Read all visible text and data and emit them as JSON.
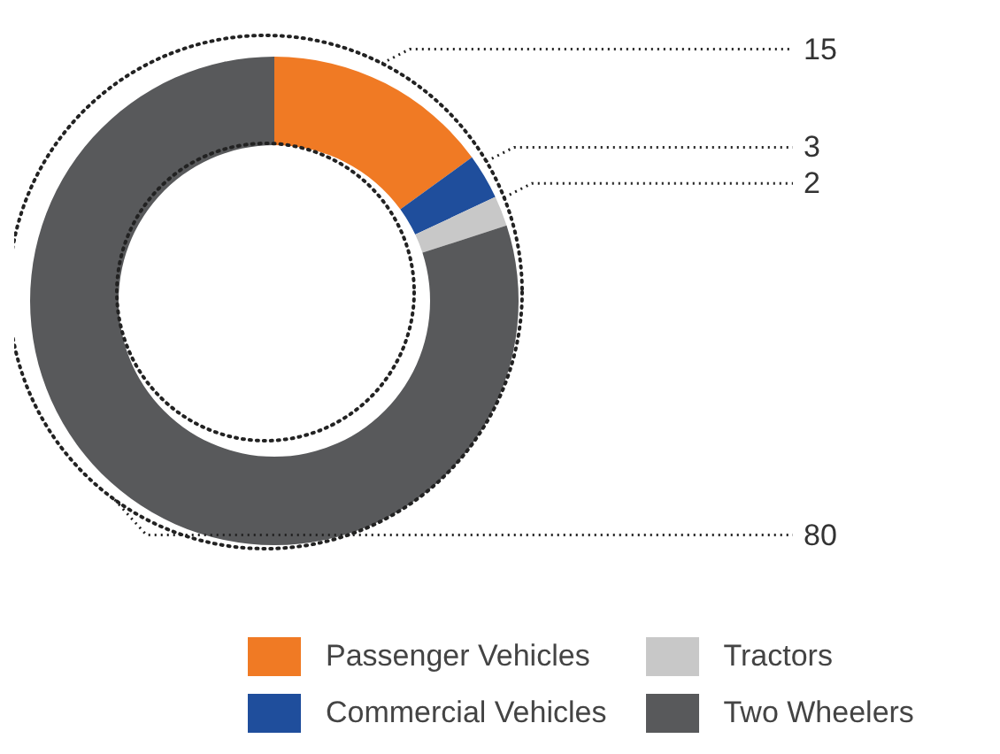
{
  "chart_data": {
    "type": "donut",
    "categories": [
      "Passenger Vehicles",
      "Commercial Vehicles",
      "Tractors",
      "Two Wheelers"
    ],
    "values": [
      15,
      3,
      2,
      80
    ],
    "colors": [
      "#f07a24",
      "#1f4e9c",
      "#c8c8c8",
      "#58595b"
    ],
    "data_labels": true,
    "legend": "bottom"
  }
}
